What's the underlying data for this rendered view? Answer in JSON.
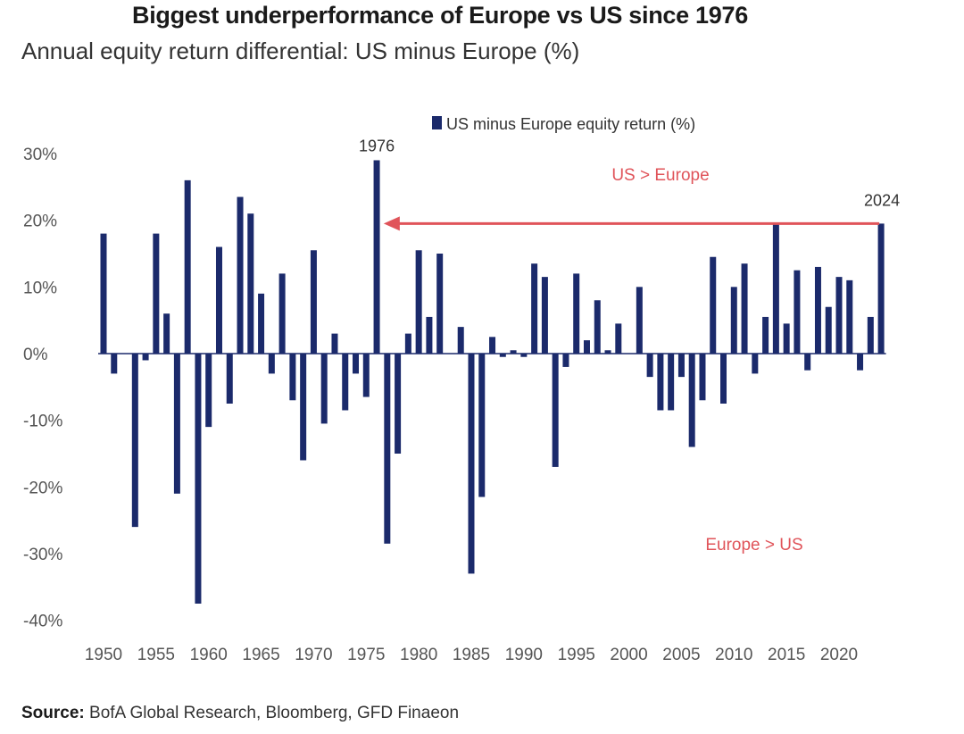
{
  "title": "Biggest underperformance of Europe vs US since 1976",
  "subtitle": "Annual equity return differential: US minus Europe (%)",
  "source": {
    "label": "Source:",
    "text": "BofA Global Research, Bloomberg, GFD Finaeon"
  },
  "colors": {
    "bar": "#1b2a6b",
    "arrow": "#e0545a",
    "annotation_red": "#e0545a"
  },
  "chart_data": {
    "type": "bar",
    "title": "Biggest underperformance of Europe vs US since 1976",
    "xlabel": "",
    "ylabel": "",
    "ylim": [
      -40,
      30
    ],
    "yticks": [
      {
        "value": 30,
        "label": "30%"
      },
      {
        "value": 20,
        "label": "20%"
      },
      {
        "value": 10,
        "label": "10%"
      },
      {
        "value": 0,
        "label": "0%"
      },
      {
        "value": -10,
        "label": "-10%"
      },
      {
        "value": -20,
        "label": "-20%"
      },
      {
        "value": -30,
        "label": "-30%"
      },
      {
        "value": -40,
        "label": "-40%"
      }
    ],
    "xticks": [
      1950,
      1955,
      1960,
      1965,
      1970,
      1975,
      1980,
      1985,
      1990,
      1995,
      2000,
      2005,
      2010,
      2015,
      2020
    ],
    "legend": {
      "label": "US minus Europe equity return (%)",
      "position": "top-center"
    },
    "series": [
      {
        "name": "US minus Europe equity return (%)",
        "x": [
          1950,
          1951,
          1952,
          1953,
          1954,
          1955,
          1956,
          1957,
          1958,
          1959,
          1960,
          1961,
          1962,
          1963,
          1964,
          1965,
          1966,
          1967,
          1968,
          1969,
          1970,
          1971,
          1972,
          1973,
          1974,
          1975,
          1976,
          1977,
          1978,
          1979,
          1980,
          1981,
          1982,
          1983,
          1984,
          1985,
          1986,
          1987,
          1988,
          1989,
          1990,
          1991,
          1992,
          1993,
          1994,
          1995,
          1996,
          1997,
          1998,
          1999,
          2000,
          2001,
          2002,
          2003,
          2004,
          2005,
          2006,
          2007,
          2008,
          2009,
          2010,
          2011,
          2012,
          2013,
          2014,
          2015,
          2016,
          2017,
          2018,
          2019,
          2020,
          2021,
          2022,
          2023,
          2024
        ],
        "values": [
          18,
          -3,
          0,
          -26,
          -1,
          18,
          6,
          -21,
          26,
          -37.5,
          -11,
          16,
          -7.5,
          23.5,
          21,
          9,
          -3,
          12,
          -7,
          -16,
          15.5,
          -10.5,
          3,
          -8.5,
          -3,
          -6.5,
          29,
          -28.5,
          -15,
          3,
          15.5,
          5.5,
          15,
          0,
          4,
          -33,
          -21.5,
          2.5,
          -0.5,
          0.5,
          -0.5,
          13.5,
          11.5,
          -17,
          -2,
          12,
          2,
          8,
          0.5,
          4.5,
          0,
          10,
          -3.5,
          -8.5,
          -8.5,
          -3.5,
          -14,
          -7,
          14.5,
          -7.5,
          10,
          13.5,
          -3,
          5.5,
          19.5,
          4.5,
          12.5,
          -2.5,
          13,
          7,
          11.5,
          11,
          -2.5,
          5.5,
          19.5
        ]
      }
    ],
    "annotations": [
      {
        "text": "1976",
        "year": 1976
      },
      {
        "text": "2024",
        "year": 2024
      },
      {
        "text": "US > Europe",
        "color": "red"
      },
      {
        "text": "Europe > US",
        "color": "red"
      }
    ],
    "arrow": {
      "from_year": 2024,
      "to_year": 1977,
      "value": 19.5
    }
  }
}
